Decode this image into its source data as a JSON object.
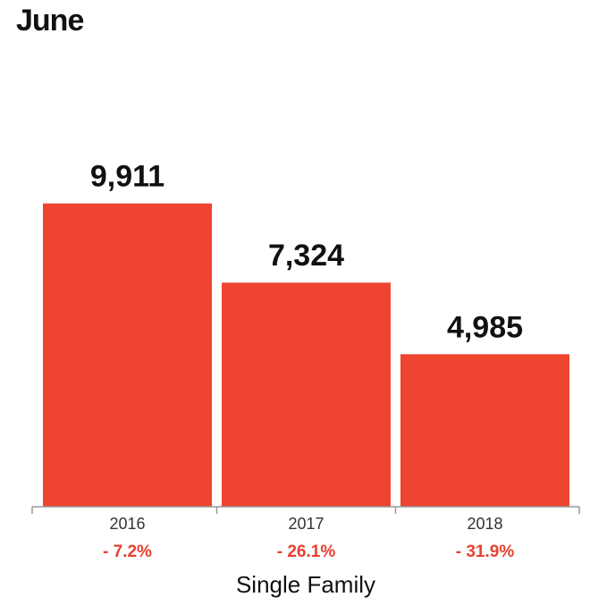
{
  "chart_data": {
    "type": "bar",
    "title": "June",
    "xlabel": "Single Family",
    "ylabel": "",
    "categories": [
      "2016",
      "2017",
      "2018"
    ],
    "values": [
      9911,
      7324,
      4985
    ],
    "value_labels": [
      "9,911",
      "7,324",
      "4,985"
    ],
    "changes": [
      "- 7.2%",
      "- 26.1%",
      "- 31.9%"
    ],
    "ylim": [
      0,
      12850
    ],
    "grid": false,
    "bar_color": "#ee4430",
    "change_color": "#e8402f"
  }
}
